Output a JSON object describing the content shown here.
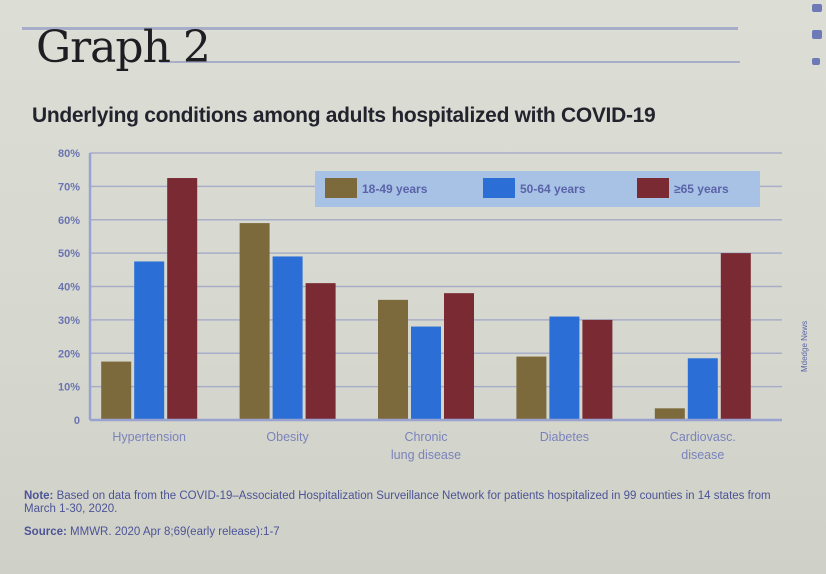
{
  "page": {
    "graph_title": "Graph 2",
    "note_label": "Note:",
    "note_text": "Based on data from the COVID-19–Associated Hospitalization Surveillance Network for patients hospitalized in 99 counties in 14 states from March 1-30, 2020.",
    "source_label": "Source:",
    "source_text": "MMWR. 2020 Apr 8;69(early release):1-7",
    "credit": "Mdedge News"
  },
  "chart_data": {
    "type": "bar",
    "title": "Underlying conditions among adults hospitalized with COVID-19",
    "xlabel": "",
    "ylabel": "",
    "ylim": [
      0,
      80
    ],
    "yticks": [
      0,
      10,
      20,
      30,
      40,
      50,
      60,
      70,
      80
    ],
    "ytick_labels": [
      "0",
      "10%",
      "20%",
      "30%",
      "40%",
      "50%",
      "60%",
      "70%",
      "80%"
    ],
    "grid": true,
    "legend_position": "top-right",
    "categories": [
      "Hypertension",
      "Obesity",
      "Chronic lung disease",
      "Diabetes",
      "Cardiovasc. disease"
    ],
    "category_labels": [
      [
        "Hypertension"
      ],
      [
        "Obesity"
      ],
      [
        "Chronic",
        "lung disease"
      ],
      [
        "Diabetes"
      ],
      [
        "Cardiovasc.",
        "disease"
      ]
    ],
    "series": [
      {
        "name": "18-49 years",
        "color": "#7d6a3c",
        "values": [
          17.5,
          59,
          36,
          19,
          3.5
        ]
      },
      {
        "name": "50-64 years",
        "color": "#2b6fd6",
        "values": [
          47.5,
          49,
          28,
          31,
          18.5
        ]
      },
      {
        "name": "≥65 years",
        "color": "#7a2a32",
        "values": [
          72.5,
          41,
          38,
          30,
          50
        ]
      }
    ],
    "colors": {
      "legend_bg": "#a8c2e6",
      "gridline": "#a9aec8",
      "axis": "#9aa3cf"
    }
  }
}
